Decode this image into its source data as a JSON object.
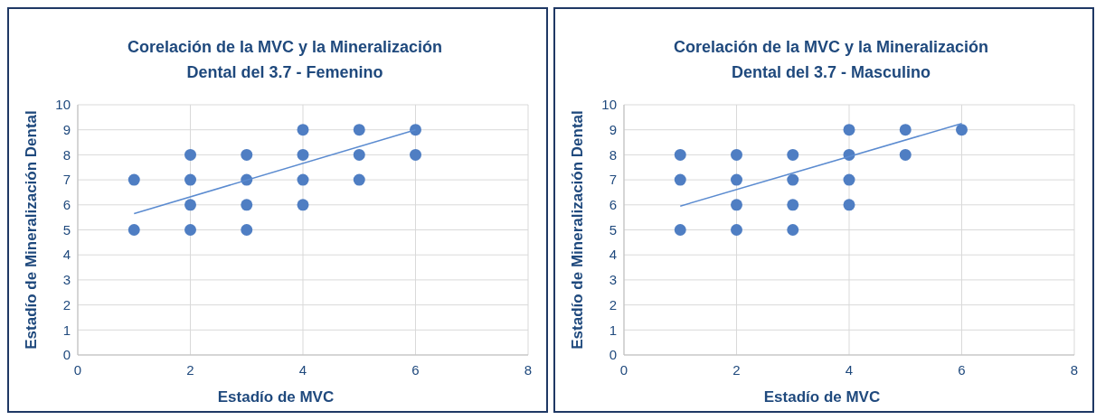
{
  "chart_data": [
    {
      "type": "scatter",
      "title": "Corelación de la MVC y la Mineralización Dental del 3.7 - Femenino",
      "xlabel": "Estadío de MVC",
      "ylabel": "Estadío de Mineralización Dental",
      "xlim": [
        0,
        8
      ],
      "xticks": [
        0,
        2,
        4,
        6,
        8
      ],
      "ylim": [
        0,
        10
      ],
      "yticks": [
        0,
        1,
        2,
        3,
        4,
        5,
        6,
        7,
        8,
        9,
        10
      ],
      "grid": true,
      "marker": "circle",
      "series": [
        {
          "color": "#4f7ec3",
          "x": [
            1,
            1,
            2,
            2,
            2,
            2,
            3,
            3,
            3,
            3,
            4,
            4,
            4,
            4,
            5,
            5,
            5,
            6,
            6
          ],
          "values": [
            7,
            5,
            8,
            7,
            6,
            5,
            8,
            7,
            6,
            5,
            9,
            8,
            7,
            6,
            9,
            8,
            7,
            9,
            8
          ]
        },
        {
          "type": "line",
          "color": "#5b8bd0",
          "marker": "none",
          "line_style": "solid",
          "x": [
            1,
            6
          ],
          "values": [
            5.65,
            9.0
          ]
        }
      ]
    },
    {
      "type": "scatter",
      "title": "Corelación de la MVC y la Mineralización Dental del 3.7 - Masculino",
      "xlabel": "Estadío de MVC",
      "ylabel": "Estadío de Mineralización Dental",
      "xlim": [
        0,
        8
      ],
      "xticks": [
        0,
        2,
        4,
        6,
        8
      ],
      "ylim": [
        0,
        10
      ],
      "yticks": [
        0,
        1,
        2,
        3,
        4,
        5,
        6,
        7,
        8,
        9,
        10
      ],
      "grid": true,
      "marker": "circle",
      "series": [
        {
          "color": "#4f7ec3",
          "x": [
            1,
            1,
            1,
            2,
            2,
            2,
            2,
            3,
            3,
            3,
            3,
            4,
            4,
            4,
            4,
            5,
            5,
            6
          ],
          "values": [
            8,
            7,
            5,
            8,
            7,
            6,
            5,
            8,
            7,
            6,
            5,
            9,
            8,
            7,
            6,
            9,
            8,
            9
          ]
        },
        {
          "type": "line",
          "color": "#5b8bd0",
          "marker": "none",
          "line_style": "solid",
          "x": [
            1,
            6
          ],
          "values": [
            5.95,
            9.25
          ]
        }
      ]
    }
  ]
}
